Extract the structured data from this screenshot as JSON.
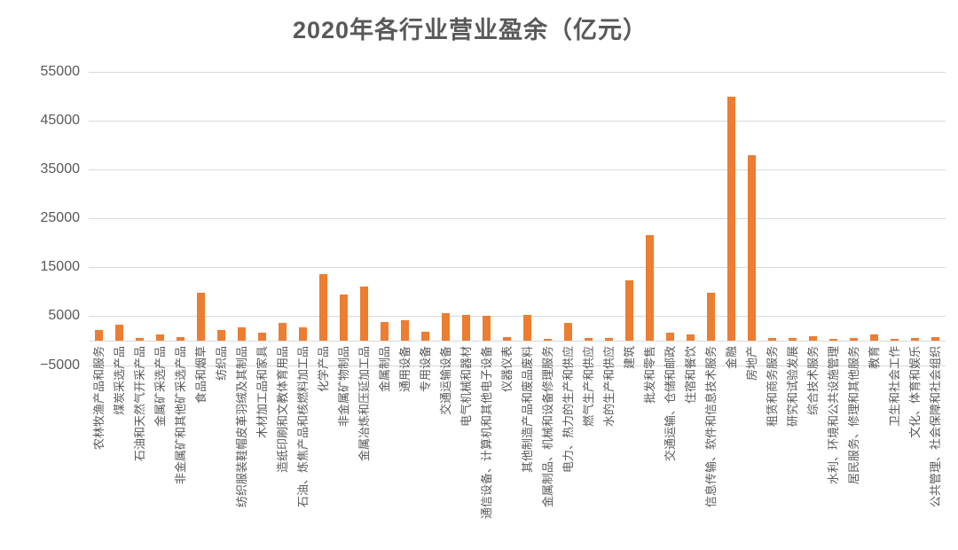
{
  "title": "2020年各行业营业盈余（亿元）",
  "colors": {
    "bar": "#ed7d31",
    "gridline": "#d9d9d9",
    "text": "#595959",
    "background": "#ffffff"
  },
  "chart_data": {
    "type": "bar",
    "title": "2020年各行业营业盈余（亿元）",
    "categories": [
      "农林牧渔产品和服务",
      "煤炭采选产品",
      "石油和天然气开采产品",
      "金属矿采选产品",
      "非金属矿和其他矿采选产品",
      "食品和烟草",
      "纺织品",
      "纺织服装鞋帽皮革羽绒及其制品",
      "木材加工品和家具",
      "造纸印刷和文教体育用品",
      "石油、炼焦产品和核燃料加工品",
      "化学产品",
      "非金属矿物制品",
      "金属冶炼和压延加工品",
      "金属制品",
      "通用设备",
      "专用设备",
      "交通运输设备",
      "电气机械和器材",
      "通信设备、计算机和其他电子设备",
      "仪器仪表",
      "其他制造产品和废品废料",
      "金属制品、机械和设备修理服务",
      "电力、热力的生产和供应",
      "燃气生产和供应",
      "水的生产和供应",
      "建筑",
      "批发和零售",
      "交通运输、仓储和邮政",
      "住宿和餐饮",
      "信息传输、软件和信息技术服务",
      "金融",
      "房地产",
      "租赁和商务服务",
      "研究和试验发展",
      "综合技术服务",
      "水利、环境和公共设施管理",
      "居民服务、修理和其他服务",
      "教育",
      "卫生和社会工作",
      "文化、体育和娱乐",
      "公共管理、社会保障和社会组织"
    ],
    "values": [
      2100,
      3300,
      500,
      1200,
      700,
      9900,
      2200,
      2800,
      1700,
      3700,
      2800,
      13600,
      9400,
      11000,
      3900,
      4100,
      1900,
      5700,
      5200,
      5000,
      800,
      5200,
      400,
      3600,
      500,
      600,
      12400,
      21600,
      1600,
      1200,
      9900,
      50000,
      38000,
      600,
      600,
      1000,
      400,
      500,
      1200,
      300,
      500,
      700
    ],
    "xlabel": "",
    "ylabel": "",
    "ylim": [
      -5000,
      55000
    ],
    "yticks": [
      55000,
      45000,
      35000,
      25000,
      15000,
      5000,
      -5000
    ],
    "ytick_labels": [
      "55000",
      "45000",
      "35000",
      "25000",
      "15000",
      "5000",
      "−5000"
    ],
    "grid": true,
    "legend": "none",
    "bar_color": "#ed7d31"
  }
}
